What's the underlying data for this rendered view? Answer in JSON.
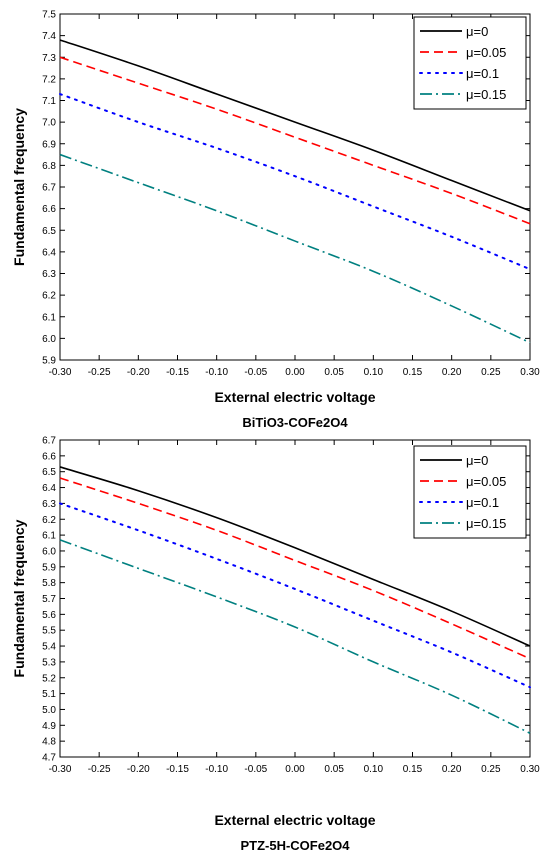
{
  "chart_data": [
    {
      "type": "line",
      "caption": "BiTiO3-COFe2O4",
      "xlabel": "External electric voltage",
      "ylabel": "Fundamental frequency",
      "xlim": [
        -0.3,
        0.3
      ],
      "ylim": [
        5.9,
        7.5
      ],
      "xticks": [
        -0.3,
        -0.25,
        -0.2,
        -0.15,
        -0.1,
        -0.05,
        0.0,
        0.05,
        0.1,
        0.15,
        0.2,
        0.25,
        0.3
      ],
      "yticks": [
        5.9,
        6.0,
        6.1,
        6.2,
        6.3,
        6.4,
        6.5,
        6.6,
        6.7,
        6.8,
        6.9,
        7.0,
        7.1,
        7.2,
        7.3,
        7.4,
        7.5
      ],
      "x": [
        -0.3,
        -0.2,
        -0.1,
        0.0,
        0.1,
        0.2,
        0.3
      ],
      "legend_position": "top-right",
      "series": [
        {
          "name": "μ=0",
          "values": [
            7.38,
            7.26,
            7.13,
            7.0,
            6.87,
            6.73,
            6.59
          ],
          "color": "#000000",
          "dash": "solid"
        },
        {
          "name": "μ=0.05",
          "values": [
            7.3,
            7.18,
            7.06,
            6.93,
            6.8,
            6.67,
            6.53
          ],
          "color": "#ff0000",
          "dash": "dash"
        },
        {
          "name": "μ=0.1",
          "values": [
            7.13,
            7.0,
            6.88,
            6.75,
            6.61,
            6.47,
            6.32
          ],
          "color": "#0000ff",
          "dash": "dot"
        },
        {
          "name": "μ=0.15",
          "values": [
            6.85,
            6.72,
            6.59,
            6.45,
            6.31,
            6.15,
            5.98
          ],
          "color": "#008080",
          "dash": "dashdot"
        }
      ]
    },
    {
      "type": "line",
      "caption": "PTZ-5H-COFe2O4",
      "xlabel": "External electric voltage",
      "ylabel": "Fundamental frequency",
      "xlim": [
        -0.3,
        0.3
      ],
      "ylim": [
        4.7,
        6.7
      ],
      "xticks": [
        -0.3,
        -0.25,
        -0.2,
        -0.15,
        -0.1,
        -0.05,
        0.0,
        0.05,
        0.1,
        0.15,
        0.2,
        0.25,
        0.3
      ],
      "yticks": [
        4.7,
        4.8,
        4.9,
        5.0,
        5.1,
        5.2,
        5.3,
        5.4,
        5.5,
        5.6,
        5.7,
        5.8,
        5.9,
        6.0,
        6.1,
        6.2,
        6.3,
        6.4,
        6.5,
        6.6,
        6.7
      ],
      "x": [
        -0.3,
        -0.2,
        -0.1,
        0.0,
        0.1,
        0.2,
        0.3
      ],
      "legend_position": "top-right",
      "series": [
        {
          "name": "μ=0",
          "values": [
            6.53,
            6.38,
            6.21,
            6.02,
            5.82,
            5.62,
            5.4
          ],
          "color": "#000000",
          "dash": "solid"
        },
        {
          "name": "μ=0.05",
          "values": [
            6.46,
            6.3,
            6.13,
            5.94,
            5.75,
            5.54,
            5.32
          ],
          "color": "#ff0000",
          "dash": "dash"
        },
        {
          "name": "μ=0.1",
          "values": [
            6.3,
            6.13,
            5.95,
            5.76,
            5.56,
            5.36,
            5.14
          ],
          "color": "#0000ff",
          "dash": "dot"
        },
        {
          "name": "μ=0.15",
          "values": [
            6.07,
            5.89,
            5.71,
            5.52,
            5.3,
            5.09,
            4.85
          ],
          "color": "#008080",
          "dash": "dashdot"
        }
      ]
    }
  ]
}
